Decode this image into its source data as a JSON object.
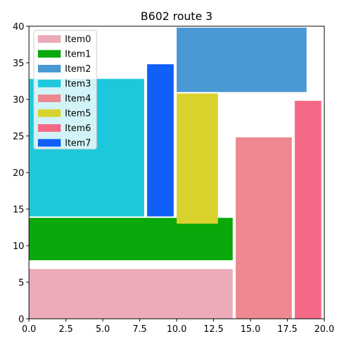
{
  "chart_data": {
    "type": "treemap-rectangles",
    "title": "B602 route 3",
    "xlim": [
      0,
      20
    ],
    "ylim": [
      0,
      40
    ],
    "xticks": [
      "0.0",
      "2.5",
      "5.0",
      "7.5",
      "10.0",
      "12.5",
      "15.0",
      "17.5",
      "20.0"
    ],
    "yticks": [
      "0",
      "5",
      "10",
      "15",
      "20",
      "25",
      "30",
      "35",
      "40"
    ],
    "legend_position": "top-left",
    "grid": false,
    "items": [
      {
        "name": "Item0",
        "color": "#ecabb9",
        "x0": 0,
        "x1": 13.8,
        "y0": 0,
        "y1": 6.8
      },
      {
        "name": "Item1",
        "color": "#0aa80a",
        "x0": 0,
        "x1": 13.8,
        "y0": 8,
        "y1": 13.8
      },
      {
        "name": "Item2",
        "color": "#4a98d4",
        "x0": 10,
        "x1": 18.8,
        "y0": 31,
        "y1": 39.8
      },
      {
        "name": "Item3",
        "color": "#1ec8dc",
        "x0": 0,
        "x1": 7.8,
        "y0": 14,
        "y1": 32.8
      },
      {
        "name": "Item4",
        "color": "#ee8890",
        "x0": 14,
        "x1": 17.8,
        "y0": 0,
        "y1": 24.8
      },
      {
        "name": "Item5",
        "color": "#dad22c",
        "x0": 10,
        "x1": 12.8,
        "y0": 13,
        "y1": 30.8
      },
      {
        "name": "Item6",
        "color": "#f46a86",
        "x0": 18,
        "x1": 19.8,
        "y0": 0,
        "y1": 29.8
      },
      {
        "name": "Item7",
        "color": "#0f5ff8",
        "x0": 8,
        "x1": 9.8,
        "y0": 14,
        "y1": 34.8
      }
    ]
  }
}
